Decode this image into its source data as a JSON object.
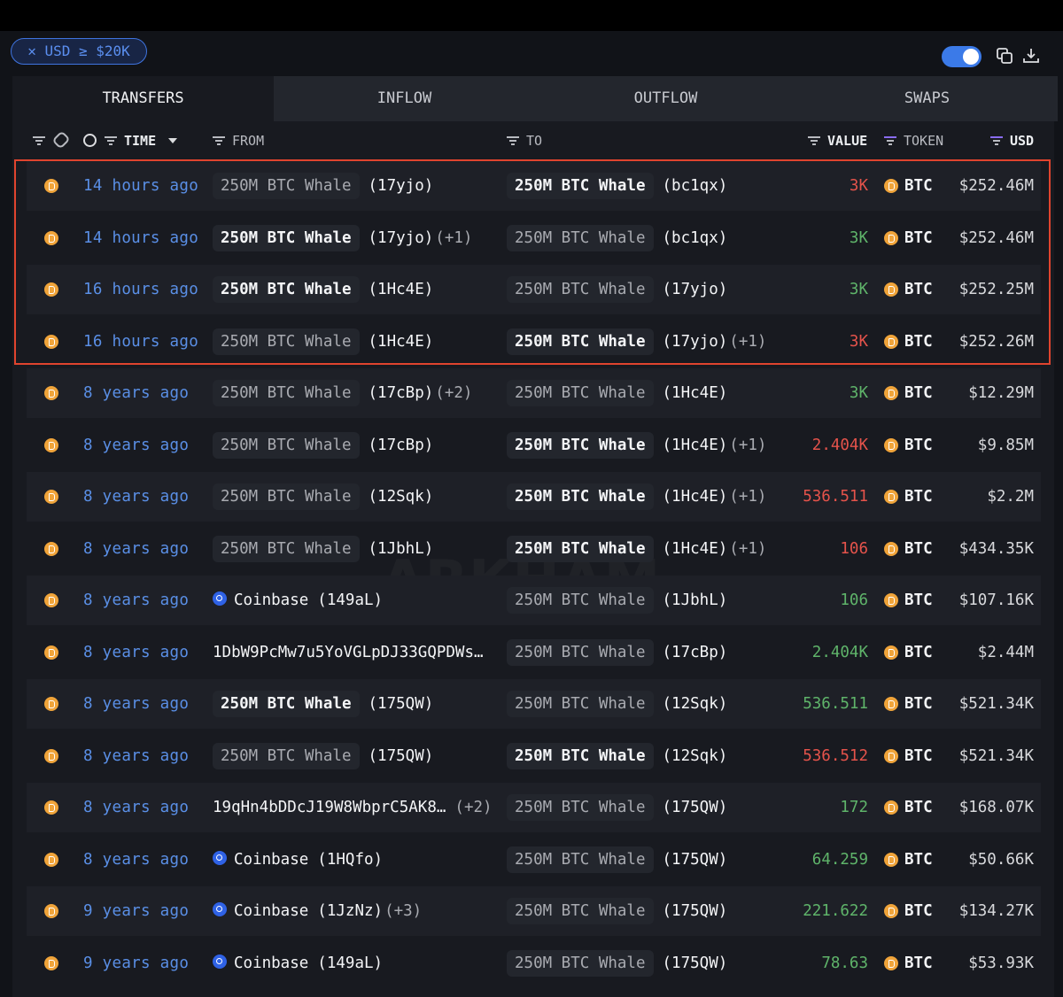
{
  "filter": "USD ≥ $20K",
  "tabs": [
    "TRANSFERS",
    "INFLOW",
    "OUTFLOW",
    "SWAPS"
  ],
  "active_tab": 0,
  "columns": {
    "time": "TIME",
    "from": "FROM",
    "to": "TO",
    "value": "VALUE",
    "token": "TOKEN",
    "usd": "USD"
  },
  "watermark": "ARKHAM",
  "rows": [
    {
      "time": "14 hours ago",
      "from": {
        "name": "250M BTC Whale",
        "addr": "(17yjo)",
        "bold": false
      },
      "to": {
        "name": "250M BTC Whale",
        "addr": "(bc1qx)",
        "bold": true
      },
      "value": "3K",
      "value_color": "#e5534b",
      "token": "BTC",
      "usd": "$252.46M"
    },
    {
      "time": "14 hours ago",
      "from": {
        "name": "250M BTC Whale",
        "addr": "(17yjo)",
        "extra": "(+1)",
        "bold": true
      },
      "to": {
        "name": "250M BTC Whale",
        "addr": "(bc1qx)",
        "bold": false
      },
      "value": "3K",
      "value_color": "#5fb46a",
      "token": "BTC",
      "usd": "$252.46M"
    },
    {
      "time": "16 hours ago",
      "from": {
        "name": "250M BTC Whale",
        "addr": "(1Hc4E)",
        "bold": true
      },
      "to": {
        "name": "250M BTC Whale",
        "addr": "(17yjo)",
        "bold": false
      },
      "value": "3K",
      "value_color": "#5fb46a",
      "token": "BTC",
      "usd": "$252.25M"
    },
    {
      "time": "16 hours ago",
      "from": {
        "name": "250M BTC Whale",
        "addr": "(1Hc4E)",
        "bold": false
      },
      "to": {
        "name": "250M BTC Whale",
        "addr": "(17yjo)",
        "extra": "(+1)",
        "bold": true
      },
      "value": "3K",
      "value_color": "#e5534b",
      "token": "BTC",
      "usd": "$252.26M"
    },
    {
      "time": "8 years ago",
      "from": {
        "name": "250M BTC Whale",
        "addr": "(17cBp)",
        "extra": "(+2)",
        "bold": false
      },
      "to": {
        "name": "250M BTC Whale",
        "addr": "(1Hc4E)",
        "bold": false
      },
      "value": "3K",
      "value_color": "#5fb46a",
      "token": "BTC",
      "usd": "$12.29M"
    },
    {
      "time": "8 years ago",
      "from": {
        "name": "250M BTC Whale",
        "addr": "(17cBp)",
        "bold": false
      },
      "to": {
        "name": "250M BTC Whale",
        "addr": "(1Hc4E)",
        "extra": "(+1)",
        "bold": true
      },
      "value": "2.404K",
      "value_color": "#e5534b",
      "token": "BTC",
      "usd": "$9.85M"
    },
    {
      "time": "8 years ago",
      "from": {
        "name": "250M BTC Whale",
        "addr": "(12Sqk)",
        "bold": false
      },
      "to": {
        "name": "250M BTC Whale",
        "addr": "(1Hc4E)",
        "extra": "(+1)",
        "bold": true
      },
      "value": "536.511",
      "value_color": "#e5534b",
      "token": "BTC",
      "usd": "$2.2M"
    },
    {
      "time": "8 years ago",
      "from": {
        "name": "250M BTC Whale",
        "addr": "(1JbhL)",
        "bold": false
      },
      "to": {
        "name": "250M BTC Whale",
        "addr": "(1Hc4E)",
        "extra": "(+1)",
        "bold": true
      },
      "value": "106",
      "value_color": "#e5534b",
      "token": "BTC",
      "usd": "$434.35K"
    },
    {
      "time": "8 years ago",
      "from": {
        "name": "Coinbase",
        "addr": "(149aL)",
        "coinbase": true
      },
      "to": {
        "name": "250M BTC Whale",
        "addr": "(1JbhL)",
        "bold": false
      },
      "value": "106",
      "value_color": "#5fb46a",
      "token": "BTC",
      "usd": "$107.16K"
    },
    {
      "time": "8 years ago",
      "from": {
        "plain": "1DbW9PcMw7u5YoVGLpDJ33GQPDWs…"
      },
      "to": {
        "name": "250M BTC Whale",
        "addr": "(17cBp)",
        "bold": false
      },
      "value": "2.404K",
      "value_color": "#5fb46a",
      "token": "BTC",
      "usd": "$2.44M"
    },
    {
      "time": "8 years ago",
      "from": {
        "name": "250M BTC Whale",
        "addr": "(175QW)",
        "bold": true
      },
      "to": {
        "name": "250M BTC Whale",
        "addr": "(12Sqk)",
        "bold": false
      },
      "value": "536.511",
      "value_color": "#5fb46a",
      "token": "BTC",
      "usd": "$521.34K"
    },
    {
      "time": "8 years ago",
      "from": {
        "name": "250M BTC Whale",
        "addr": "(175QW)",
        "bold": false
      },
      "to": {
        "name": "250M BTC Whale",
        "addr": "(12Sqk)",
        "bold": true
      },
      "value": "536.512",
      "value_color": "#e5534b",
      "token": "BTC",
      "usd": "$521.34K"
    },
    {
      "time": "8 years ago",
      "from": {
        "plain": "19qHn4bDDcJ19W8WbprC5AK8…",
        "extra": "(+2)"
      },
      "to": {
        "name": "250M BTC Whale",
        "addr": "(175QW)",
        "bold": false
      },
      "value": "172",
      "value_color": "#5fb46a",
      "token": "BTC",
      "usd": "$168.07K"
    },
    {
      "time": "8 years ago",
      "from": {
        "name": "Coinbase",
        "addr": "(1HQfo)",
        "coinbase": true
      },
      "to": {
        "name": "250M BTC Whale",
        "addr": "(175QW)",
        "bold": false
      },
      "value": "64.259",
      "value_color": "#5fb46a",
      "token": "BTC",
      "usd": "$50.66K"
    },
    {
      "time": "9 years ago",
      "from": {
        "name": "Coinbase",
        "addr": "(1JzNz)",
        "extra": "(+3)",
        "coinbase": true
      },
      "to": {
        "name": "250M BTC Whale",
        "addr": "(175QW)",
        "bold": false
      },
      "value": "221.622",
      "value_color": "#5fb46a",
      "token": "BTC",
      "usd": "$134.27K"
    },
    {
      "time": "9 years ago",
      "from": {
        "name": "Coinbase",
        "addr": "(149aL)",
        "coinbase": true
      },
      "to": {
        "name": "250M BTC Whale",
        "addr": "(175QW)",
        "bold": false
      },
      "value": "78.63",
      "value_color": "#5fb46a",
      "token": "BTC",
      "usd": "$53.93K"
    }
  ]
}
